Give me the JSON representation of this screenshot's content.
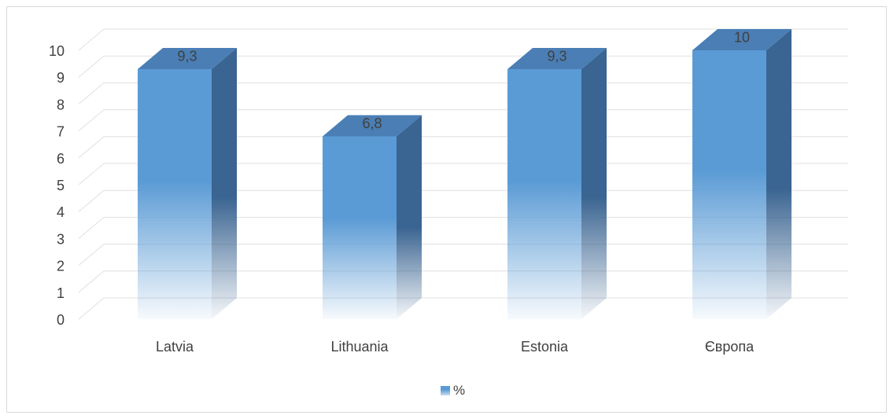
{
  "chart_data": {
    "type": "bar",
    "categories": [
      "Latvia",
      "Lithuania",
      "Estonia",
      "Європа"
    ],
    "series": [
      {
        "name": "%",
        "values": [
          9.3,
          6.8,
          9.3,
          10
        ],
        "labels": [
          "9,3",
          "6,8",
          "9,3",
          "10"
        ]
      }
    ],
    "ylim": [
      0,
      10
    ],
    "yticks": [
      "0",
      "1",
      "2",
      "3",
      "4",
      "5",
      "6",
      "7",
      "8",
      "9",
      "10"
    ],
    "grid": true,
    "legend_position": "bottom",
    "colors": {
      "front": "#5b9bd5",
      "side": "#3a6491",
      "top": "#4a7eb4",
      "grid": "#e0e0e0"
    }
  },
  "legend": {
    "label": "%"
  }
}
